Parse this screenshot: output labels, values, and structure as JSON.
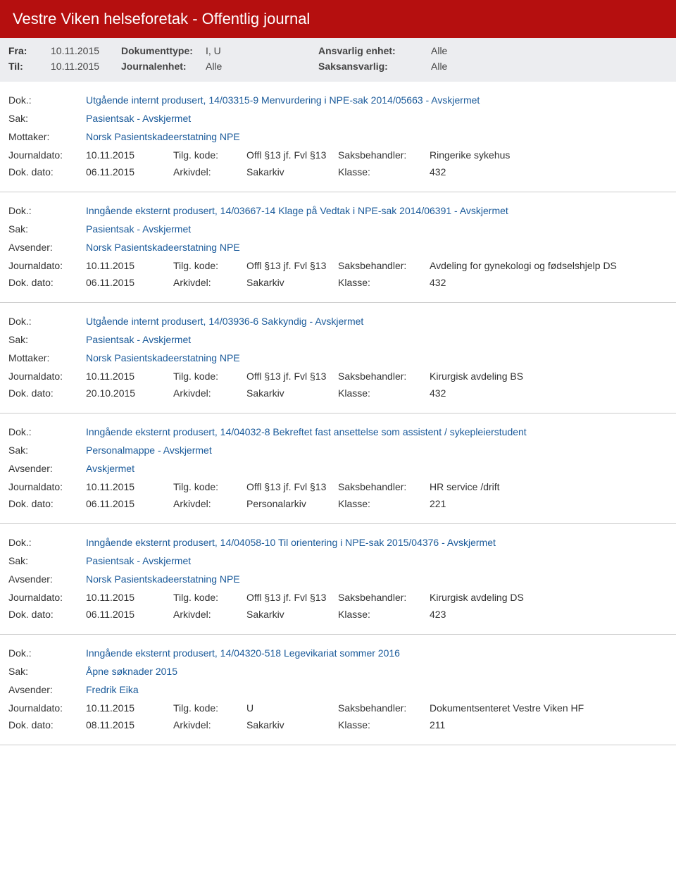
{
  "header": {
    "title": "Vestre Viken helseforetak - Offentlig journal"
  },
  "filters": {
    "fra_label": "Fra:",
    "fra_value": "10.11.2015",
    "til_label": "Til:",
    "til_value": "10.11.2015",
    "doktype_label": "Dokumenttype:",
    "doktype_value": "I, U",
    "journalenhet_label": "Journalenhet:",
    "journalenhet_value": "Alle",
    "ansvarlig_label": "Ansvarlig enhet:",
    "ansvarlig_value": "Alle",
    "saksansvarlig_label": "Saksansvarlig:",
    "saksansvarlig_value": "Alle"
  },
  "labels": {
    "dok": "Dok.:",
    "sak": "Sak:",
    "mottaker": "Mottaker:",
    "avsender": "Avsender:",
    "journaldato": "Journaldato:",
    "dokdato": "Dok. dato:",
    "tilgkode": "Tilg. kode:",
    "arkivdel": "Arkivdel:",
    "saksbehandler": "Saksbehandler:",
    "klasse": "Klasse:"
  },
  "records": [
    {
      "dok": "Utgående internt produsert, 14/03315-9 Menvurdering i NPE-sak 2014/05663 - Avskjermet",
      "sak": "Pasientsak - Avskjermet",
      "party_label": "Mottaker:",
      "party": "Norsk Pasientskadeerstatning NPE",
      "journaldato": "10.11.2015",
      "tilgkode": "Offl §13 jf. Fvl §13",
      "saksbehandler": "Ringerike sykehus",
      "dokdato": "06.11.2015",
      "arkivdel": "Sakarkiv",
      "klasse": "432"
    },
    {
      "dok": "Inngående eksternt produsert, 14/03667-14 Klage på Vedtak i NPE-sak 2014/06391 - Avskjermet",
      "sak": "Pasientsak - Avskjermet",
      "party_label": "Avsender:",
      "party": "Norsk Pasientskadeerstatning NPE",
      "journaldato": "10.11.2015",
      "tilgkode": "Offl §13 jf. Fvl §13",
      "saksbehandler": "Avdeling for gynekologi og fødselshjelp DS",
      "dokdato": "06.11.2015",
      "arkivdel": "Sakarkiv",
      "klasse": "432"
    },
    {
      "dok": "Utgående internt produsert, 14/03936-6 Sakkyndig - Avskjermet",
      "sak": "Pasientsak - Avskjermet",
      "party_label": "Mottaker:",
      "party": "Norsk Pasientskadeerstatning NPE",
      "journaldato": "10.11.2015",
      "tilgkode": "Offl §13 jf. Fvl §13",
      "saksbehandler": "Kirurgisk avdeling BS",
      "dokdato": "20.10.2015",
      "arkivdel": "Sakarkiv",
      "klasse": "432"
    },
    {
      "dok": "Inngående eksternt produsert, 14/04032-8 Bekreftet fast ansettelse som assistent / sykepleierstudent",
      "sak": "Personalmappe - Avskjermet",
      "party_label": "Avsender:",
      "party": "Avskjermet",
      "journaldato": "10.11.2015",
      "tilgkode": "Offl §13 jf. Fvl §13",
      "saksbehandler": "HR service /drift",
      "dokdato": "06.11.2015",
      "arkivdel": "Personalarkiv",
      "klasse": "221"
    },
    {
      "dok": "Inngående eksternt produsert, 14/04058-10 Til orientering i NPE-sak 2015/04376 - Avskjermet",
      "sak": "Pasientsak - Avskjermet",
      "party_label": "Avsender:",
      "party": "Norsk Pasientskadeerstatning NPE",
      "journaldato": "10.11.2015",
      "tilgkode": "Offl §13 jf. Fvl §13",
      "saksbehandler": "Kirurgisk avdeling DS",
      "dokdato": "06.11.2015",
      "arkivdel": "Sakarkiv",
      "klasse": "423"
    },
    {
      "dok": "Inngående eksternt produsert, 14/04320-518 Legevikariat sommer 2016",
      "sak": "Åpne søknader 2015",
      "party_label": "Avsender:",
      "party": "Fredrik Eika",
      "journaldato": "10.11.2015",
      "tilgkode": "U",
      "saksbehandler": "Dokumentsenteret Vestre Viken HF",
      "dokdato": "08.11.2015",
      "arkivdel": "Sakarkiv",
      "klasse": "211"
    }
  ],
  "colors": {
    "header_bg": "#b50f0f",
    "filter_bg": "#ecedf0",
    "link": "#1a5a9a",
    "text": "#333333",
    "border": "#cccccc"
  }
}
